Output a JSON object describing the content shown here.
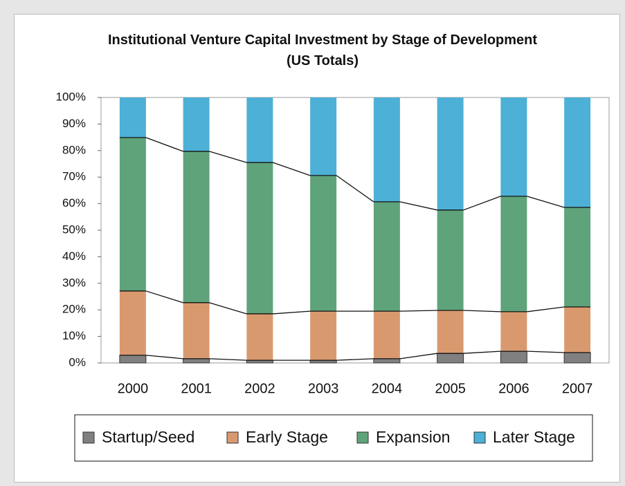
{
  "chart_data": {
    "type": "stacked_bar",
    "title": "Institutional Venture Capital Investment by Stage of Development (US Totals)",
    "categories": [
      "2000",
      "2001",
      "2002",
      "2003",
      "2004",
      "2005",
      "2006",
      "2007"
    ],
    "series": [
      {
        "name": "Startup/Seed",
        "color": "#808080",
        "values": [
          2.9,
          1.6,
          1.0,
          1.0,
          1.6,
          3.6,
          4.4,
          3.9
        ]
      },
      {
        "name": "Early Stage",
        "color": "#d9996f",
        "values": [
          24.2,
          21.1,
          17.5,
          18.5,
          17.9,
          16.2,
          14.9,
          17.2
        ]
      },
      {
        "name": "Expansion",
        "color": "#5fa37a",
        "values": [
          57.8,
          57.0,
          57.0,
          51.1,
          41.2,
          37.8,
          43.5,
          37.5
        ]
      },
      {
        "name": "Later Stage",
        "color": "#4db0d6",
        "values": [
          15.1,
          20.3,
          24.5,
          29.4,
          39.3,
          42.4,
          37.2,
          41.4
        ]
      }
    ],
    "ylim": [
      0,
      100
    ],
    "yticks": [
      {
        "value": 0,
        "label": "0%"
      },
      {
        "value": 10,
        "label": "10%"
      },
      {
        "value": 20,
        "label": "20%"
      },
      {
        "value": 30,
        "label": "30%"
      },
      {
        "value": 40,
        "label": "40%"
      },
      {
        "value": 50,
        "label": "50%"
      },
      {
        "value": 60,
        "label": "60%"
      },
      {
        "value": 70,
        "label": "70%"
      },
      {
        "value": 80,
        "label": "80%"
      },
      {
        "value": 90,
        "label": "90%"
      },
      {
        "value": 100,
        "label": "100%"
      }
    ],
    "legend": "bottom"
  }
}
